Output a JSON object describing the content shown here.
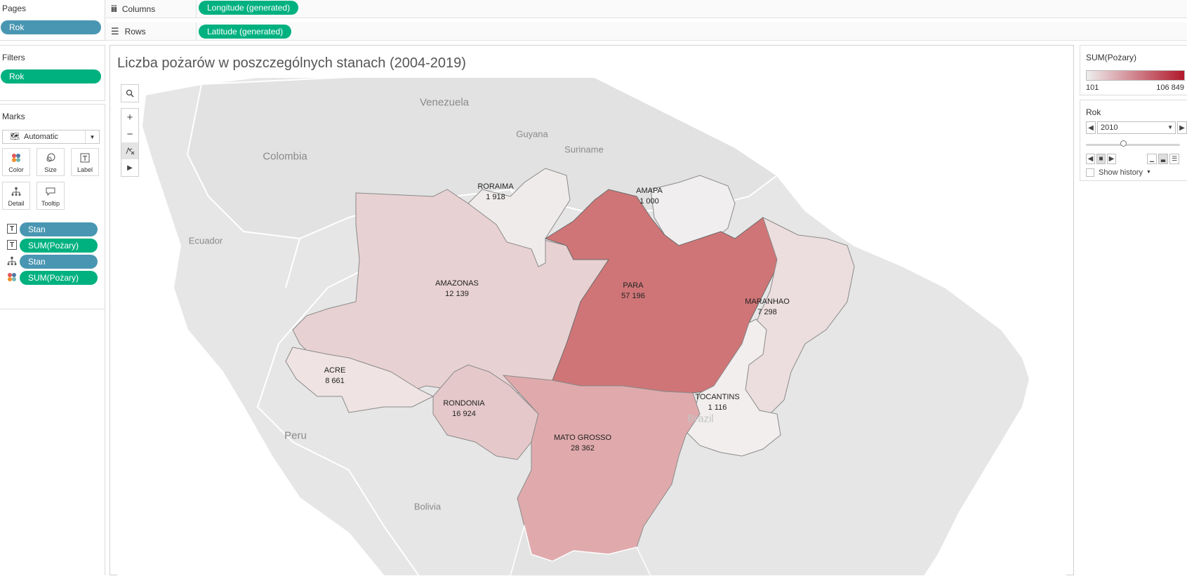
{
  "shelves": {
    "pages_title": "Pages",
    "pages_pill": "Rok",
    "columns_label": "Columns",
    "columns_pill": "Longitude (generated)",
    "rows_label": "Rows",
    "rows_pill": "Latitude (generated)"
  },
  "filters": {
    "title": "Filters",
    "pill": "Rok"
  },
  "marks": {
    "title": "Marks",
    "type_value": "Automatic",
    "buttons": {
      "color": "Color",
      "size": "Size",
      "label": "Label",
      "detail": "Detail",
      "tooltip": "Tooltip"
    },
    "fields": [
      {
        "icon": "text-icon",
        "label": "Stan",
        "color": "#4996b2"
      },
      {
        "icon": "text-icon",
        "label": "SUM(Pożary)",
        "color": "#00b180"
      },
      {
        "icon": "detail-icon",
        "label": "Stan",
        "color": "#4996b2"
      },
      {
        "icon": "color-icon",
        "label": "SUM(Pożary)",
        "color": "#00b180"
      }
    ]
  },
  "view": {
    "title": "Liczba pożarów w poszczególnych stanach (2004-2019)"
  },
  "map": {
    "countries": {
      "venezuela": "Venezuela",
      "guyana": "Guyana",
      "suriname": "Suriname",
      "colombia": "Colombia",
      "ecuador": "Ecuador",
      "peru": "Peru",
      "bolivia": "Bolivia",
      "brazil": "Brazil"
    },
    "states": [
      {
        "name": "RORAIMA",
        "value": "1 918"
      },
      {
        "name": "AMAPA",
        "value": "1 000"
      },
      {
        "name": "AMAZONAS",
        "value": "12 139"
      },
      {
        "name": "PARA",
        "value": "57 196"
      },
      {
        "name": "MARANHAO",
        "value": "7 298"
      },
      {
        "name": "ACRE",
        "value": "8 661"
      },
      {
        "name": "RONDONIA",
        "value": "16 924"
      },
      {
        "name": "MATO GROSSO",
        "value": "28 362"
      },
      {
        "name": "TOCANTINS",
        "value": "1 116"
      }
    ]
  },
  "legend": {
    "title": "SUM(Pożary)",
    "min": "101",
    "max": "106 849",
    "color_low": "#eeeeee",
    "color_high": "#b2182b"
  },
  "page_control": {
    "title": "Rok",
    "value": "2010",
    "show_history": "Show history",
    "slider_fraction": 0.4
  },
  "colors": {
    "pill_blue": "#4996b2",
    "pill_green": "#00b180"
  }
}
